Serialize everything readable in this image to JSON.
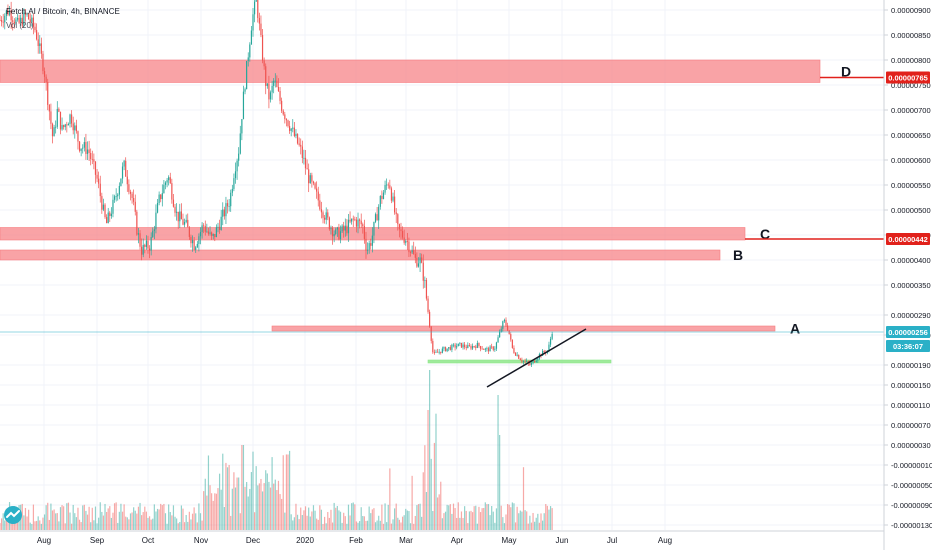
{
  "header": {
    "title": "Fetch.AI / Bitcoin, 4h, BINANCE",
    "vol_label": "Vol (20)"
  },
  "chart_data": {
    "type": "candlestick",
    "symbol": "Fetch.AI / Bitcoin",
    "interval": "4h",
    "exchange": "BINANCE",
    "x_ticks": [
      "Aug",
      "Sep",
      "Oct",
      "Nov",
      "Dec",
      "2020",
      "Feb",
      "Mar",
      "Apr",
      "May",
      "Jun",
      "Jul",
      "Aug"
    ],
    "price_ticks": [
      "0.00000900",
      "0.00000850",
      "0.00000800",
      "0.00000750",
      "0.00000700",
      "0.00000650",
      "0.00000600",
      "0.00000550",
      "0.00000500",
      "0.00000450",
      "0.00000400",
      "0.00000350",
      "0.00000290",
      "0.00000250",
      "0.00000190",
      "0.00000150",
      "0.00000110",
      "0.00000070",
      "0.00000030",
      "-0.00000010",
      "-0.00000050",
      "-0.00000090",
      "-0.00000130"
    ],
    "zones": [
      {
        "label": "D",
        "price_low": 7.55e-06,
        "price_high": 8e-06,
        "color": "#f77c80"
      },
      {
        "label": "C",
        "price_low": 4.4e-06,
        "price_high": 4.65e-06,
        "color": "#f77c80"
      },
      {
        "label": "B",
        "price_low": 4e-06,
        "price_high": 4.2e-06,
        "color": "#f77c80"
      },
      {
        "label": "A",
        "price_low": 2.58e-06,
        "price_high": 2.68e-06,
        "color": "#f77c80"
      },
      {
        "label": "",
        "price_low": 1.95e-06,
        "price_high": 2e-06,
        "color": "#8ee68a"
      }
    ],
    "price_tags": [
      {
        "label": "0.00000765",
        "color": "#e1211b"
      },
      {
        "label": "0.00000442",
        "color": "#e1211b"
      },
      {
        "label": "0.00000256",
        "color": "#2ab0c7"
      },
      {
        "label": "03:36:07",
        "color": "#2ab0c7"
      }
    ],
    "price_path": [
      [
        0.0,
        880
      ],
      [
        0.01,
        900
      ],
      [
        0.02,
        870
      ],
      [
        0.03,
        890
      ],
      [
        0.04,
        860
      ],
      [
        0.05,
        780
      ],
      [
        0.06,
        640
      ],
      [
        0.065,
        700
      ],
      [
        0.07,
        660
      ],
      [
        0.08,
        690
      ],
      [
        0.09,
        630
      ],
      [
        0.1,
        620
      ],
      [
        0.11,
        560
      ],
      [
        0.12,
        470
      ],
      [
        0.13,
        520
      ],
      [
        0.14,
        590
      ],
      [
        0.15,
        520
      ],
      [
        0.155,
        460
      ],
      [
        0.16,
        420
      ],
      [
        0.17,
        430
      ],
      [
        0.18,
        520
      ],
      [
        0.19,
        570
      ],
      [
        0.2,
        490
      ],
      [
        0.21,
        470
      ],
      [
        0.22,
        430
      ],
      [
        0.23,
        470
      ],
      [
        0.24,
        440
      ],
      [
        0.25,
        480
      ],
      [
        0.26,
        520
      ],
      [
        0.265,
        580
      ],
      [
        0.27,
        620
      ],
      [
        0.275,
        720
      ],
      [
        0.28,
        800
      ],
      [
        0.285,
        880
      ],
      [
        0.29,
        920
      ],
      [
        0.3,
        760
      ],
      [
        0.305,
        720
      ],
      [
        0.31,
        760
      ],
      [
        0.32,
        700
      ],
      [
        0.33,
        660
      ],
      [
        0.34,
        620
      ],
      [
        0.35,
        560
      ],
      [
        0.36,
        520
      ],
      [
        0.37,
        480
      ],
      [
        0.38,
        450
      ],
      [
        0.39,
        460
      ],
      [
        0.4,
        480
      ],
      [
        0.41,
        470
      ],
      [
        0.415,
        420
      ],
      [
        0.42,
        440
      ],
      [
        0.43,
        520
      ],
      [
        0.44,
        560
      ],
      [
        0.45,
        460
      ],
      [
        0.46,
        440
      ],
      [
        0.47,
        400
      ],
      [
        0.475,
        400
      ],
      [
        0.48,
        360
      ],
      [
        0.49,
        210
      ],
      [
        0.5,
        220
      ],
      [
        0.51,
        225
      ],
      [
        0.52,
        230
      ],
      [
        0.53,
        225
      ],
      [
        0.54,
        230
      ],
      [
        0.55,
        220
      ],
      [
        0.56,
        225
      ],
      [
        0.57,
        280
      ],
      [
        0.575,
        260
      ],
      [
        0.58,
        220
      ],
      [
        0.59,
        200
      ],
      [
        0.6,
        190
      ],
      [
        0.61,
        210
      ],
      [
        0.62,
        220
      ],
      [
        0.625,
        260
      ]
    ],
    "price_range": [
      -1.4e-06,
      9.2e-06
    ]
  }
}
